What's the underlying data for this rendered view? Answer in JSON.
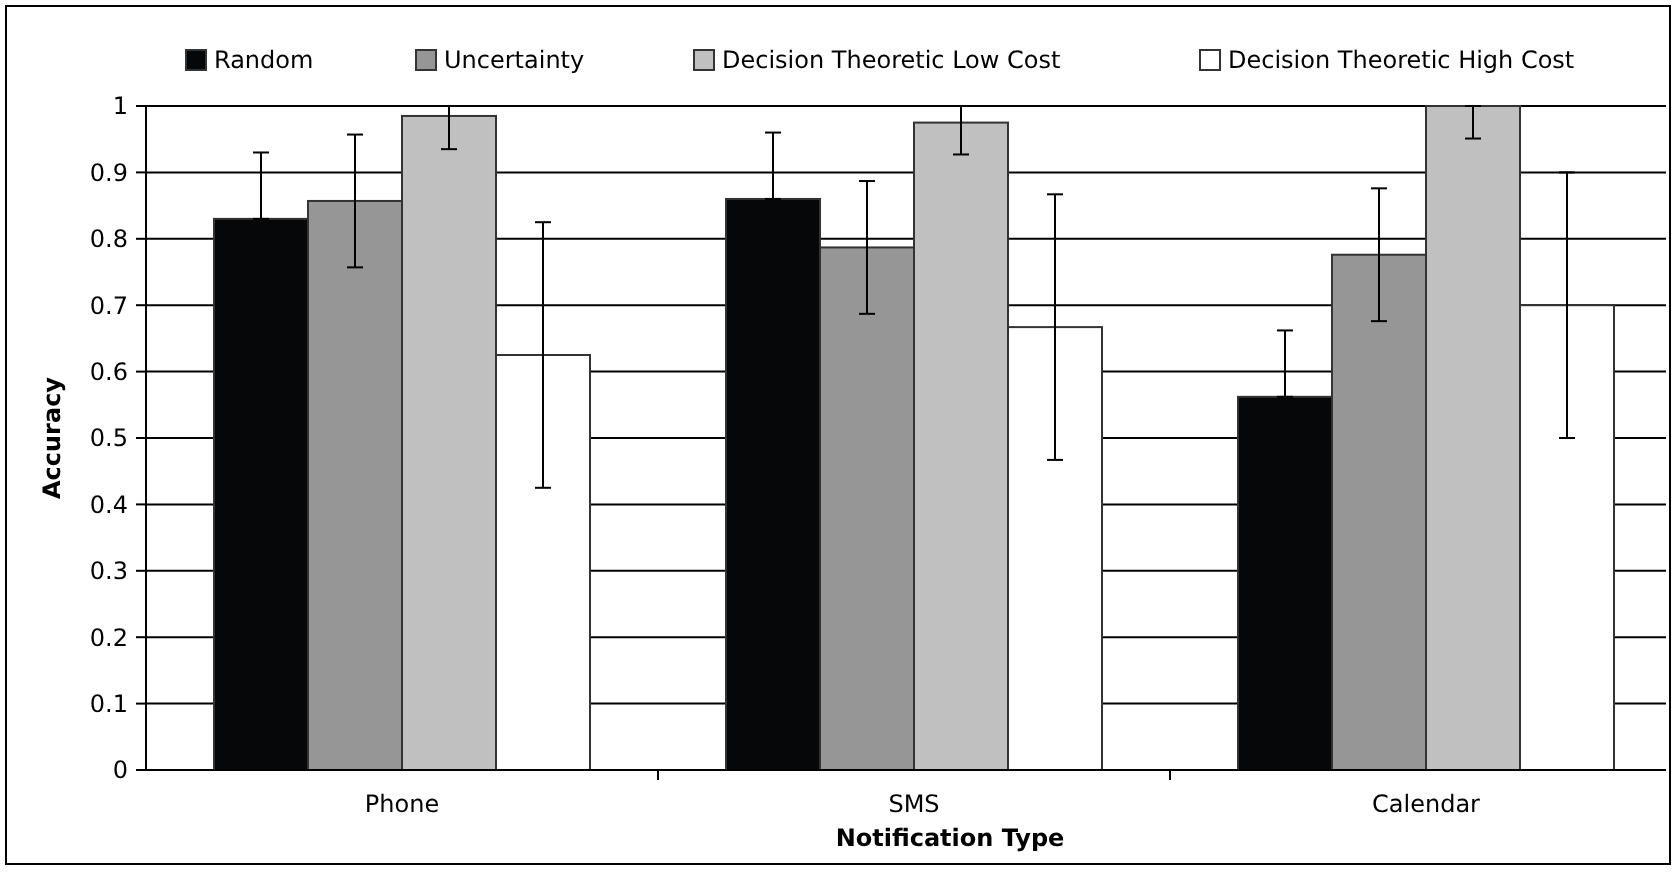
{
  "chart_data": {
    "type": "bar",
    "xlabel": "Notification Type",
    "ylabel": "Accuracy",
    "categories": [
      "Phone",
      "SMS",
      "Calendar"
    ],
    "series": [
      {
        "name": "Random",
        "color": "#060709",
        "values": [
          0.83,
          0.86,
          0.562
        ],
        "errors": [
          [
            0.83,
            0.93
          ],
          [
            0.86,
            0.96
          ],
          [
            0.562,
            0.662
          ]
        ]
      },
      {
        "name": "Uncertainty",
        "color": "#969696",
        "values": [
          0.857,
          0.787,
          0.776
        ],
        "errors": [
          [
            0.757,
            0.957
          ],
          [
            0.687,
            0.887
          ],
          [
            0.676,
            0.876
          ]
        ]
      },
      {
        "name": "Decision Theoretic Low Cost",
        "color": "#c0c0c0",
        "values": [
          0.985,
          0.975,
          1
        ],
        "errors": [
          [
            0.935,
            1
          ],
          [
            0.927,
            1
          ],
          [
            0.951,
            1
          ]
        ]
      },
      {
        "name": "Decision Theoretic High Cost",
        "color": "#ffffff",
        "values": [
          0.625,
          0.667,
          0.7
        ],
        "errors": [
          [
            0.425,
            0.825
          ],
          [
            0.467,
            0.867
          ],
          [
            0.5,
            0.9
          ]
        ]
      }
    ],
    "ylim": [
      0,
      1
    ],
    "yticks": [
      0,
      0.1,
      0.2,
      0.3,
      0.4,
      0.5,
      0.6,
      0.7,
      0.8,
      0.9,
      1
    ],
    "grid": "y",
    "legend": "top"
  }
}
